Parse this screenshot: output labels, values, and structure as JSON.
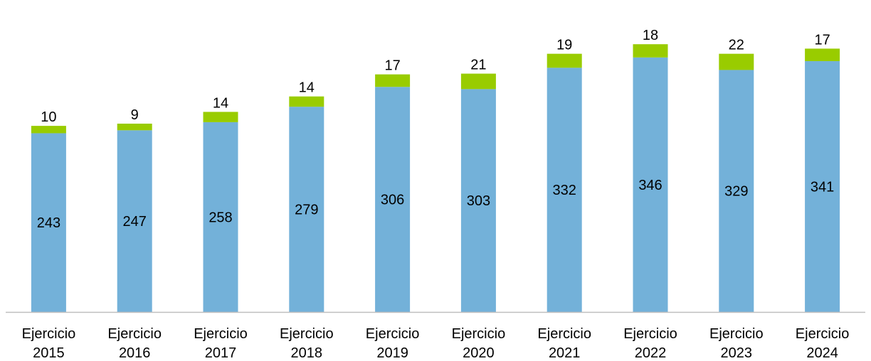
{
  "chart_data": {
    "type": "bar",
    "stacked": true,
    "categories": [
      [
        "Ejercicio",
        "2015"
      ],
      [
        "Ejercicio",
        "2016"
      ],
      [
        "Ejercicio",
        "2017"
      ],
      [
        "Ejercicio",
        "2018"
      ],
      [
        "Ejercicio",
        "2019"
      ],
      [
        "Ejercicio",
        "2020"
      ],
      [
        "Ejercicio",
        "2021"
      ],
      [
        "Ejercicio",
        "2022"
      ],
      [
        "Ejercicio",
        "2023"
      ],
      [
        "Ejercicio",
        "2024"
      ]
    ],
    "series": [
      {
        "values": [
          243,
          247,
          258,
          279,
          306,
          303,
          332,
          346,
          329,
          341
        ],
        "color": "#73b1d9"
      },
      {
        "values": [
          10,
          9,
          14,
          14,
          17,
          21,
          19,
          18,
          22,
          17
        ],
        "color": "#99cc00"
      }
    ],
    "title": "",
    "xlabel": "",
    "ylabel": "",
    "ylim": [
      0,
      370
    ],
    "grid": false,
    "legend": "none",
    "axis_color": "#bfbfbf"
  }
}
